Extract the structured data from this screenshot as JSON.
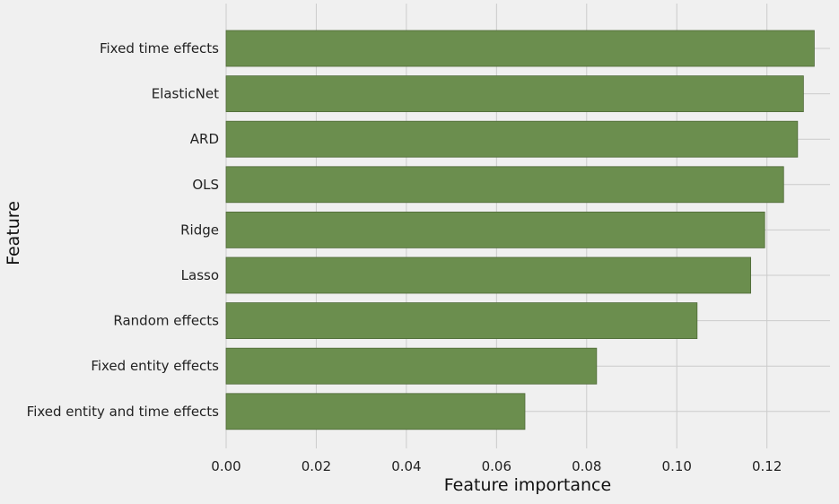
{
  "colors": {
    "background": "#f0f0f0",
    "bar": "#6b8e4e",
    "grid": "#cbcbcb"
  },
  "chart_data": {
    "type": "bar",
    "orientation": "horizontal",
    "title": "",
    "xlabel": "Feature importance",
    "ylabel": "Feature",
    "xlim": [
      0.0,
      0.134
    ],
    "xticks": [
      0.0,
      0.02,
      0.04,
      0.06,
      0.08,
      0.1,
      0.12
    ],
    "xtick_labels": [
      "0.00",
      "0.02",
      "0.04",
      "0.06",
      "0.08",
      "0.10",
      "0.12"
    ],
    "grid": true,
    "categories": [
      "Fixed time effects",
      "ElasticNet",
      "ARD",
      "OLS",
      "Ridge",
      "Lasso",
      "Random effects",
      "Fixed entity effects",
      "Fixed entity and time effects"
    ],
    "values": [
      0.1305,
      0.1281,
      0.1268,
      0.1237,
      0.1195,
      0.1164,
      0.1045,
      0.0822,
      0.0663
    ]
  }
}
